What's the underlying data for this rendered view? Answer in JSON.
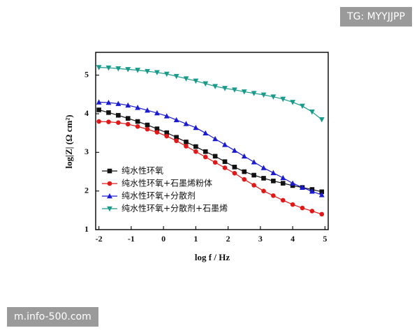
{
  "chart_data": {
    "type": "line",
    "xlabel": "log f / Hz",
    "ylabel": "log|Z| (Ω cm²)",
    "x": [
      -2,
      -1.7,
      -1.4,
      -1.1,
      -0.8,
      -0.5,
      -0.2,
      0.1,
      0.4,
      0.7,
      1,
      1.3,
      1.6,
      1.9,
      2.2,
      2.5,
      2.8,
      3.1,
      3.4,
      3.7,
      4,
      4.3,
      4.6,
      4.9
    ],
    "series": [
      {
        "name": "纯水性环氧",
        "color": "#111111",
        "marker": "square",
        "values": [
          4.1,
          4.03,
          3.96,
          3.88,
          3.8,
          3.71,
          3.61,
          3.51,
          3.39,
          3.27,
          3.15,
          3.02,
          2.9,
          2.76,
          2.62,
          2.5,
          2.41,
          2.33,
          2.26,
          2.2,
          2.14,
          2.09,
          2.04,
          1.98
        ]
      },
      {
        "name": "纯水性环氧+石墨烯粉体",
        "color": "#e01818",
        "marker": "circle",
        "values": [
          3.8,
          3.79,
          3.77,
          3.73,
          3.67,
          3.6,
          3.52,
          3.42,
          3.3,
          3.16,
          3.02,
          2.88,
          2.74,
          2.6,
          2.46,
          2.3,
          2.15,
          2.0,
          1.88,
          1.76,
          1.65,
          1.56,
          1.48,
          1.4
        ]
      },
      {
        "name": "纯水性环氧+分散剂",
        "color": "#1a1ad0",
        "marker": "triangle",
        "values": [
          4.3,
          4.29,
          4.26,
          4.22,
          4.16,
          4.09,
          4.02,
          3.94,
          3.84,
          3.74,
          3.64,
          3.5,
          3.35,
          3.2,
          3.05,
          2.9,
          2.75,
          2.6,
          2.47,
          2.34,
          2.2,
          2.09,
          1.99,
          1.9
        ]
      },
      {
        "name": "纯水性环氧+分散剂+石墨烯",
        "color": "#1a9a8a",
        "marker": "triangle-down",
        "values": [
          5.2,
          5.19,
          5.17,
          5.15,
          5.13,
          5.1,
          5.07,
          5.03,
          4.97,
          4.91,
          4.85,
          4.78,
          4.71,
          4.66,
          4.62,
          4.57,
          4.53,
          4.49,
          4.44,
          4.38,
          4.3,
          4.2,
          4.05,
          3.85
        ]
      }
    ],
    "xlim": [
      -2.1,
      5.1
    ],
    "xticks": [
      -2,
      -1,
      0,
      1,
      2,
      3,
      4,
      5
    ],
    "ylim": [
      1,
      5.5
    ],
    "yticks": [
      1,
      2,
      3,
      4,
      5
    ],
    "legend": "lower-left"
  },
  "watermarks": {
    "top_right": "TG: MYYJJPP",
    "bottom_left": "m.info-500.com"
  }
}
